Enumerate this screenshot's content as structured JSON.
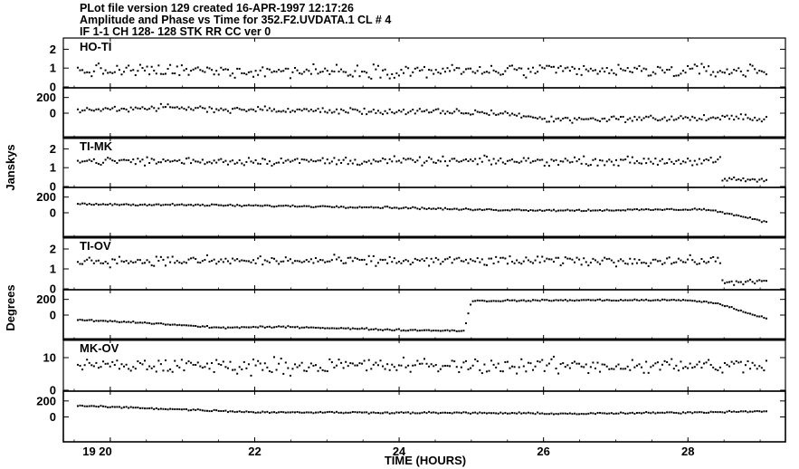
{
  "header": {
    "line1": "PLot file version 129  created 16-APR-1997 12:17:26",
    "line2": "Amplitude and Phase vs Time for 352.F2.UVDATA.1 CL #  4",
    "line3": "IF 1-1 CH  128- 128 STK RR     CC ver   0"
  },
  "chart_data": {
    "type": "scatter",
    "xlabel": "TIME (HOURS)",
    "xlim": [
      19.35,
      29.35
    ],
    "x_ticks": [
      20,
      22,
      24,
      26,
      28
    ],
    "x_tick_labels": [
      "19 20",
      "22",
      "24",
      "26",
      "28"
    ],
    "y_axis_labels": [
      "Janskys",
      "Degrees"
    ],
    "baselines": [
      {
        "name": "HO-TI",
        "amplitude": {
          "ylim": [
            0,
            2.5
          ],
          "ticks": [
            0,
            1,
            2
          ],
          "tick_labels": [
            "0",
            "1",
            "2"
          ],
          "mean": 0.85,
          "spread": 0.32
        },
        "phase": {
          "ylim": [
            -300,
            300
          ],
          "ticks": [
            0,
            200
          ],
          "tick_labels": [
            "0",
            "200"
          ],
          "trend": [
            [
              19.5,
              35
            ],
            [
              20.5,
              70
            ],
            [
              22.5,
              35
            ],
            [
              24.0,
              20
            ],
            [
              25.5,
              0
            ],
            [
              26.0,
              -80
            ],
            [
              27.0,
              -70
            ],
            [
              29.1,
              -60
            ]
          ],
          "spread": 40
        }
      },
      {
        "name": "TI-MK",
        "amplitude": {
          "ylim": [
            0,
            2.5
          ],
          "ticks": [
            0,
            1,
            2
          ],
          "tick_labels": [
            "0",
            "1",
            "2"
          ],
          "mean": 1.35,
          "spread": 0.2,
          "late_mean": 0.35
        },
        "phase": {
          "ylim": [
            -300,
            300
          ],
          "ticks": [
            0,
            200
          ],
          "tick_labels": [
            "0",
            "200"
          ],
          "trend": [
            [
              19.5,
              110
            ],
            [
              21.0,
              100
            ],
            [
              23.0,
              80
            ],
            [
              24.0,
              65
            ],
            [
              25.0,
              40
            ],
            [
              26.5,
              30
            ],
            [
              28.2,
              45
            ],
            [
              28.4,
              20
            ],
            [
              29.1,
              -120
            ]
          ],
          "spread": 12
        }
      },
      {
        "name": "TI-OV",
        "amplitude": {
          "ylim": [
            0,
            2.5
          ],
          "ticks": [
            0,
            1,
            2
          ],
          "tick_labels": [
            "0",
            "1",
            "2"
          ],
          "mean": 1.4,
          "spread": 0.22,
          "late_mean": 0.35
        },
        "phase": {
          "ylim": [
            -300,
            300
          ],
          "ticks": [
            0,
            200
          ],
          "tick_labels": [
            "0",
            "200"
          ],
          "trend": [
            [
              19.5,
              -60
            ],
            [
              20.5,
              -100
            ],
            [
              21.5,
              -160
            ],
            [
              22.5,
              -150
            ],
            [
              24.0,
              -190
            ],
            [
              24.9,
              -200
            ],
            [
              25.0,
              180
            ],
            [
              26.5,
              190
            ],
            [
              28.0,
              190
            ],
            [
              28.4,
              150
            ],
            [
              29.1,
              -50
            ]
          ],
          "spread": 10
        }
      },
      {
        "name": "MK-OV",
        "amplitude": {
          "ylim": [
            0,
            15
          ],
          "ticks": [
            0,
            10
          ],
          "tick_labels": [
            "0",
            "10"
          ],
          "mean": 7.5,
          "spread": 2.2
        },
        "phase": {
          "ylim": [
            -300,
            300
          ],
          "ticks": [
            0,
            200
          ],
          "tick_labels": [
            "0",
            "200"
          ],
          "trend": [
            [
              19.5,
              140
            ],
            [
              20.5,
              110
            ],
            [
              22.0,
              60
            ],
            [
              23.5,
              55
            ],
            [
              25.0,
              50
            ],
            [
              26.5,
              40
            ],
            [
              28.0,
              55
            ],
            [
              29.1,
              75
            ]
          ],
          "spread": 10
        }
      }
    ]
  }
}
